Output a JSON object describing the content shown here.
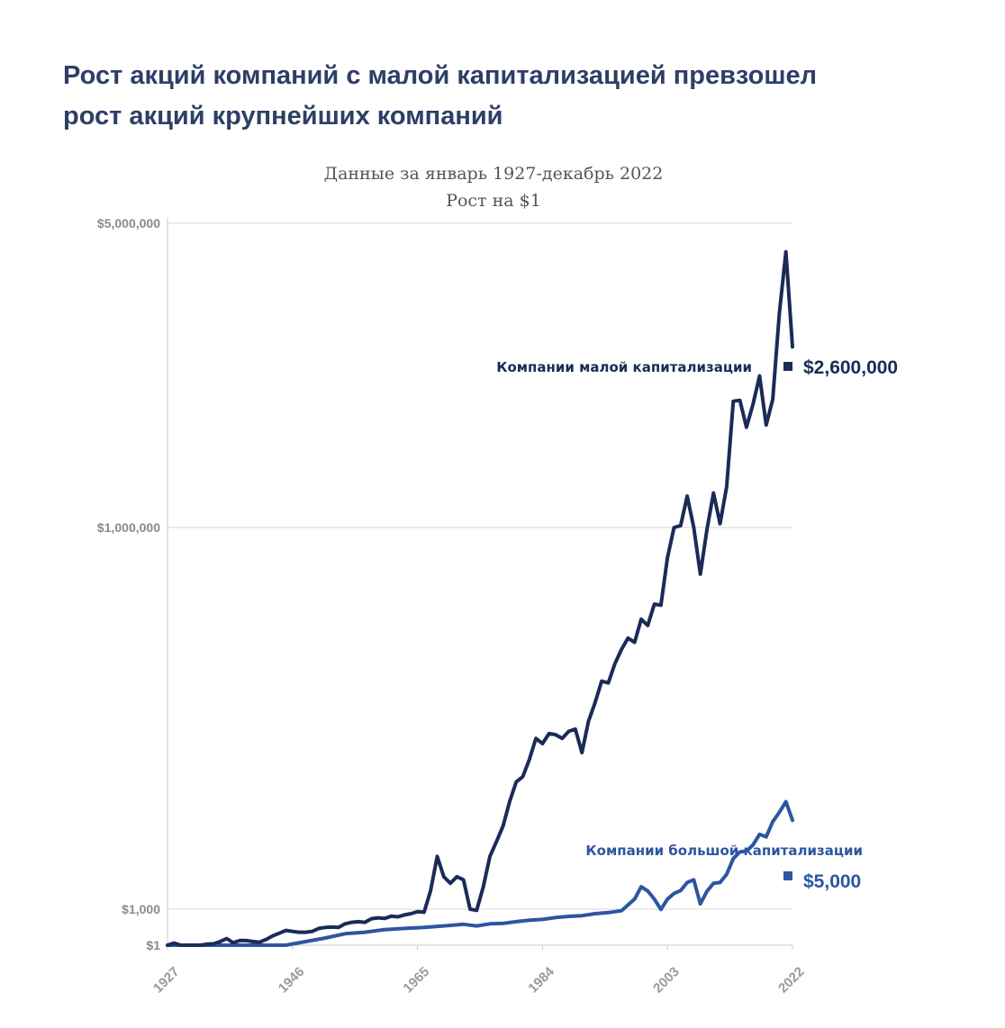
{
  "headline": {
    "line1": "Рост акций компаний с малой капитализацией превзошел",
    "line2": "рост акций крупнейших компаний"
  },
  "chart_data": {
    "type": "line",
    "title": "Данные за январь 1927-декабрь 2022",
    "subtitle": "Рост на $1",
    "xlabel": "",
    "ylabel": "",
    "y_scale": "nonlinear",
    "y_ticks": [
      {
        "value": 1,
        "label": "$1"
      },
      {
        "value": 1000,
        "label": "$1,000"
      },
      {
        "value": 1000000,
        "label": "$1,000,000"
      },
      {
        "value": 5000000,
        "label": "$5,000,000"
      }
    ],
    "x_ticks": [
      1927,
      1946,
      1965,
      1984,
      2003,
      2022
    ],
    "xlim": [
      1927,
      2022
    ],
    "grid": true,
    "series": [
      {
        "name": "Компании малой капитализации",
        "end_label": "$2,600,000",
        "color": "#1b2b57",
        "points": [
          [
            1927,
            1
          ],
          [
            1928,
            1.5
          ],
          [
            1929,
            1
          ],
          [
            1930,
            0.8
          ],
          [
            1931,
            0.5
          ],
          [
            1932,
            0.6
          ],
          [
            1933,
            1.2
          ],
          [
            1934,
            1.3
          ],
          [
            1935,
            2
          ],
          [
            1936,
            3.5
          ],
          [
            1937,
            1.6
          ],
          [
            1938,
            2.5
          ],
          [
            1939,
            2.4
          ],
          [
            1940,
            2
          ],
          [
            1941,
            1.8
          ],
          [
            1942,
            3
          ],
          [
            1943,
            6
          ],
          [
            1944,
            10
          ],
          [
            1945,
            17
          ],
          [
            1946,
            14
          ],
          [
            1947,
            12
          ],
          [
            1948,
            12
          ],
          [
            1949,
            14
          ],
          [
            1950,
            25
          ],
          [
            1951,
            30
          ],
          [
            1952,
            32
          ],
          [
            1953,
            30
          ],
          [
            1954,
            60
          ],
          [
            1955,
            80
          ],
          [
            1956,
            90
          ],
          [
            1957,
            80
          ],
          [
            1958,
            160
          ],
          [
            1959,
            190
          ],
          [
            1960,
            170
          ],
          [
            1961,
            260
          ],
          [
            1962,
            230
          ],
          [
            1963,
            330
          ],
          [
            1964,
            420
          ],
          [
            1965,
            620
          ],
          [
            1966,
            560
          ],
          [
            1967,
            1400
          ],
          [
            1968,
            2600
          ],
          [
            1969,
            1800
          ],
          [
            1970,
            1600
          ],
          [
            1971,
            1800
          ],
          [
            1972,
            1700
          ],
          [
            1973,
            1000
          ],
          [
            1974,
            800
          ],
          [
            1975,
            1500
          ],
          [
            1976,
            2600
          ],
          [
            1977,
            3400
          ],
          [
            1978,
            4500
          ],
          [
            1979,
            7000
          ],
          [
            1980,
            10000
          ],
          [
            1981,
            11000
          ],
          [
            1982,
            15000
          ],
          [
            1983,
            22000
          ],
          [
            1984,
            20000
          ],
          [
            1985,
            24000
          ],
          [
            1986,
            23500
          ],
          [
            1987,
            22000
          ],
          [
            1988,
            25000
          ],
          [
            1989,
            26000
          ],
          [
            1990,
            17000
          ],
          [
            1991,
            30000
          ],
          [
            1992,
            42000
          ],
          [
            1993,
            62000
          ],
          [
            1994,
            60000
          ],
          [
            1995,
            85000
          ],
          [
            1996,
            110000
          ],
          [
            1997,
            135000
          ],
          [
            1998,
            125000
          ],
          [
            1999,
            190000
          ],
          [
            2000,
            170000
          ],
          [
            2001,
            250000
          ],
          [
            2002,
            245000
          ],
          [
            2003,
            580000
          ],
          [
            2004,
            1000000
          ],
          [
            2005,
            1010000
          ],
          [
            2006,
            1180000
          ],
          [
            2007,
            1000000
          ],
          [
            2008,
            430000
          ],
          [
            2009,
            960000
          ],
          [
            2010,
            1200000
          ],
          [
            2011,
            1020000
          ],
          [
            2012,
            1240000
          ],
          [
            2013,
            1950000
          ],
          [
            2014,
            1960000
          ],
          [
            2015,
            1700000
          ],
          [
            2016,
            1920000
          ],
          [
            2017,
            2230000
          ],
          [
            2018,
            1720000
          ],
          [
            2019,
            1970000
          ],
          [
            2020,
            3100000
          ],
          [
            2021,
            4300000
          ],
          [
            2022,
            2600000
          ]
        ]
      },
      {
        "name": "Компании большой капитализации",
        "end_label": "$5,000",
        "color": "#2c56a0",
        "points": [
          [
            1927,
            1
          ],
          [
            1930,
            1
          ],
          [
            1933,
            1
          ],
          [
            1936,
            1
          ],
          [
            1939,
            1
          ],
          [
            1942,
            1
          ],
          [
            1945,
            1
          ],
          [
            1948,
            2
          ],
          [
            1951,
            4
          ],
          [
            1954,
            9
          ],
          [
            1957,
            12
          ],
          [
            1960,
            20
          ],
          [
            1963,
            25
          ],
          [
            1966,
            30
          ],
          [
            1969,
            40
          ],
          [
            1972,
            55
          ],
          [
            1974,
            40
          ],
          [
            1976,
            60
          ],
          [
            1978,
            65
          ],
          [
            1980,
            90
          ],
          [
            1982,
            120
          ],
          [
            1984,
            140
          ],
          [
            1986,
            200
          ],
          [
            1988,
            250
          ],
          [
            1990,
            290
          ],
          [
            1992,
            420
          ],
          [
            1994,
            520
          ],
          [
            1996,
            750
          ],
          [
            1998,
            1200
          ],
          [
            1999,
            1500
          ],
          [
            2000,
            1390
          ],
          [
            2001,
            1200
          ],
          [
            2002,
            950
          ],
          [
            2003,
            1200
          ],
          [
            2004,
            1330
          ],
          [
            2005,
            1400
          ],
          [
            2006,
            1620
          ],
          [
            2007,
            1700
          ],
          [
            2008,
            1100
          ],
          [
            2009,
            1380
          ],
          [
            2010,
            1600
          ],
          [
            2011,
            1620
          ],
          [
            2012,
            1880
          ],
          [
            2013,
            2500
          ],
          [
            2014,
            2820
          ],
          [
            2015,
            2860
          ],
          [
            2016,
            3200
          ],
          [
            2017,
            3880
          ],
          [
            2018,
            3700
          ],
          [
            2019,
            4870
          ],
          [
            2020,
            5770
          ],
          [
            2021,
            7000
          ],
          [
            2022,
            5000
          ]
        ]
      }
    ]
  }
}
